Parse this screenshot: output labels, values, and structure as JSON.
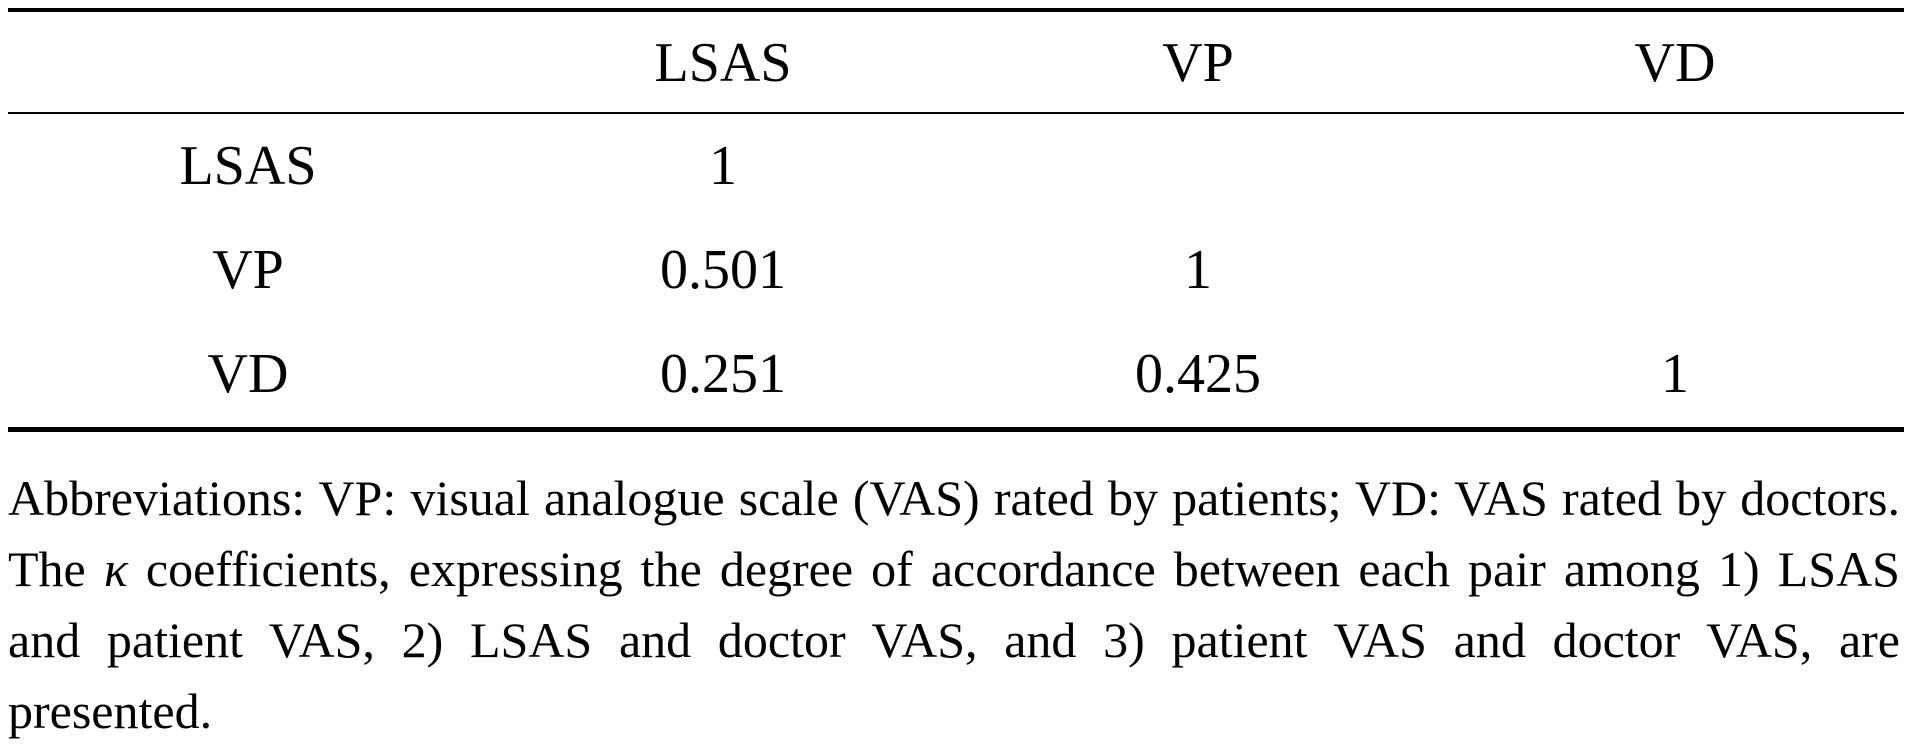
{
  "table": {
    "header": [
      "",
      "LSAS",
      "VP",
      "VD"
    ],
    "rows": [
      {
        "label": "LSAS",
        "cells": [
          "1",
          "",
          ""
        ]
      },
      {
        "label": "VP",
        "cells": [
          "0.501",
          "1",
          ""
        ]
      },
      {
        "label": "VD",
        "cells": [
          "0.251",
          "0.425",
          "1"
        ]
      }
    ]
  },
  "footnote": {
    "part1": "Abbreviations: VP: visual analogue scale (VAS) rated by patients; VD: VAS rated by doctors. The ",
    "symbol": "κ",
    "part2": " coefficients, expressing the degree of accordance between each pair among 1) LSAS and patient VAS, 2) LSAS and doctor VAS, and 3) patient VAS and doctor VAS, are presented."
  }
}
